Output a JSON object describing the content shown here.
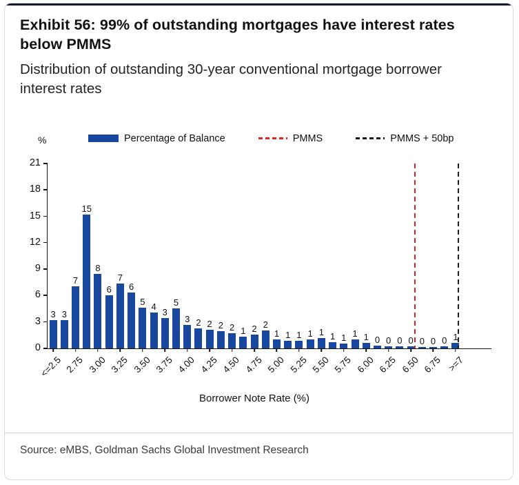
{
  "header": {
    "title": "Exhibit 56: 99% of outstanding mortgages have interest rates below PMMS",
    "subtitle": "Distribution of outstanding 30-year conventional mortgage borrower interest rates"
  },
  "footer": {
    "source": "Source: eMBS, Goldman Sachs Global Investment Research"
  },
  "colors": {
    "bar_blue": "#17479E",
    "pmms_red": "#E02420",
    "pmms_plus_50bp_black": "#1A1A1A",
    "top_rule": "#131A33"
  },
  "chart_data": {
    "type": "bar",
    "title": "Distribution of outstanding 30-year conventional mortgage borrower interest rates",
    "xlabel": "Borrower Note Rate (%)",
    "ylabel": "%",
    "ylim": [
      0,
      21
    ],
    "yticks": [
      0,
      3,
      6,
      9,
      12,
      15,
      18,
      21
    ],
    "grid": false,
    "legend_position": "top",
    "x_tick_labels": [
      "<=2.5",
      "2.75",
      "3.00",
      "3.25",
      "3.50",
      "3.75",
      "4.00",
      "4.25",
      "4.50",
      "4.75",
      "5.00",
      "5.25",
      "5.50",
      "5.75",
      "6.00",
      "6.25",
      "6.50",
      "6.75",
      ">=7"
    ],
    "series": [
      {
        "name": "Percentage of Balance",
        "color": "#17479E",
        "bar_labels": [
          3,
          3,
          7,
          15,
          8,
          6,
          7,
          6,
          5,
          4,
          3,
          5,
          3,
          2,
          2,
          2,
          2,
          1,
          2,
          2,
          1,
          1,
          1,
          1,
          1,
          1,
          1,
          1,
          1,
          0,
          0,
          0,
          0,
          0,
          0,
          0,
          1
        ],
        "values": [
          3.2,
          3.2,
          7.0,
          15.2,
          8.4,
          6.0,
          7.3,
          6.3,
          4.6,
          4.0,
          3.4,
          4.5,
          2.6,
          2.2,
          2.1,
          1.9,
          1.7,
          1.3,
          1.5,
          2.0,
          1.0,
          0.8,
          0.8,
          1.0,
          1.1,
          0.7,
          0.5,
          1.0,
          0.6,
          0.3,
          0.2,
          0.2,
          0.2,
          0.1,
          0.1,
          0.2,
          0.6
        ]
      }
    ],
    "vlines": [
      {
        "label": "PMMS",
        "color": "#E02420",
        "bar_index": 32.3
      },
      {
        "label": "PMMS + 50bp",
        "color": "#1A1A1A",
        "bar_index": 36.2
      }
    ],
    "legend": [
      {
        "label": "Percentage of Balance",
        "swatch": "bar",
        "color": "#17479E"
      },
      {
        "label": "PMMS",
        "swatch": "dashed-line",
        "color": "#E02420"
      },
      {
        "label": "PMMS + 50bp",
        "swatch": "dashed-line",
        "color": "#1A1A1A"
      }
    ]
  }
}
